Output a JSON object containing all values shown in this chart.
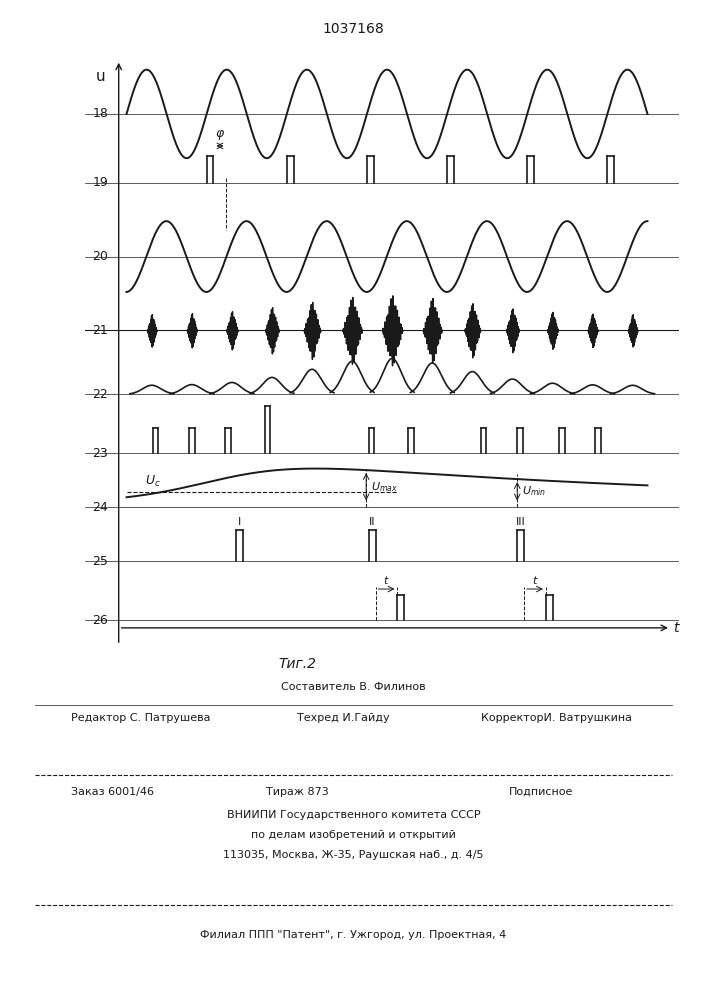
{
  "title": "1037168",
  "fig_label": "Τиг.2",
  "line_color": "#1a1a1a",
  "row_labels": [
    "18",
    "19",
    "20",
    "21",
    "22",
    "23",
    "24",
    "25",
    "26"
  ],
  "y_axis_label": "u",
  "x_axis_label": "t",
  "footer_line1_left": "Редактор С. Патрушева",
  "footer_line1_center": "Техред И.Гайду",
  "footer_line1_right": "КорректорИ. Ватрушкина",
  "footer_composer": "Составитель В. Филинов",
  "footer_order": "Заказ 6001/46",
  "footer_tirazh": "Тираж 873",
  "footer_podp": "Подписное",
  "footer_inst1": "ВНИИПИ Государственного комитета СССР",
  "footer_inst2": "по делам изобретений и открытий",
  "footer_addr": "113035, Москва, Ж-35, Раушская наб., д. 4/5",
  "footer_filial": "Филиал ППП \"Патент\", г. Ужгород, ул. Проектная, 4"
}
